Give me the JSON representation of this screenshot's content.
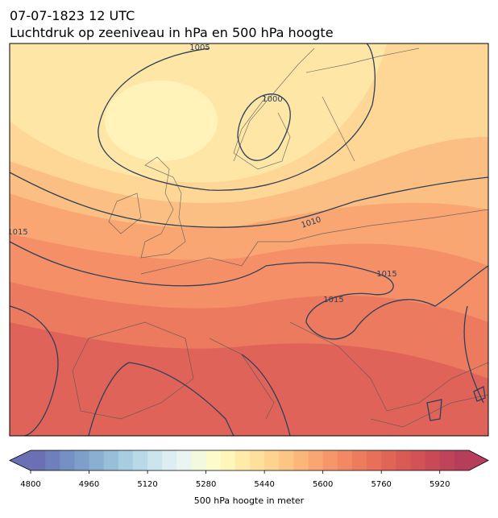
{
  "header": {
    "title": "07-07-1823 12 UTC",
    "subtitle": "Luchtdruk op zeeniveau in hPa en 500 hPa hoogte"
  },
  "map": {
    "contour_labels": [
      1005,
      1000,
      1010,
      1015,
      1015,
      1015
    ]
  },
  "colorbar": {
    "label": "500 hPa hoogte in meter",
    "range": [
      4800,
      6000
    ],
    "ticks": [
      4800,
      4960,
      5120,
      5280,
      5440,
      5600,
      5760,
      5920
    ],
    "extend": "both",
    "colors": [
      "#6b70b4",
      "#6f7fbb",
      "#7590c3",
      "#7e9fca",
      "#89afd1",
      "#97bfd9",
      "#a8cde1",
      "#bad9e8",
      "#cbe4ee",
      "#dceef2",
      "#e9f5f0",
      "#f3f9df",
      "#fbfbcb",
      "#fff6ba",
      "#feebaa",
      "#fee09c",
      "#fdd38f",
      "#fdc584",
      "#fbb67a",
      "#f9a672",
      "#f6976a",
      "#f28964",
      "#ed7c5e",
      "#e8705a",
      "#e16557",
      "#da5b56",
      "#d25256",
      "#c94a57",
      "#bf4459",
      "#b63e5b"
    ]
  }
}
